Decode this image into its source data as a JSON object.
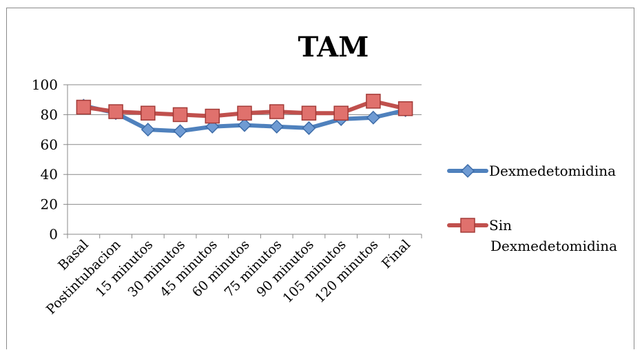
{
  "chart_data": {
    "type": "line",
    "title": "TAM",
    "xlabel": "",
    "ylabel": "",
    "ylim": [
      0,
      100
    ],
    "yticks": [
      0,
      20,
      40,
      60,
      80,
      100
    ],
    "grid": true,
    "legend_position": "right",
    "categories": [
      "Basal",
      "Postintubacion",
      "15 minutos",
      "30 minutos",
      "45 minutos",
      "60 minutos",
      "75 minutos",
      "90 minutos",
      "105 minutos",
      "120 minutos",
      "Final"
    ],
    "series": [
      {
        "name": "Dexmedetomidina",
        "legend_lines": [
          "Dexmedetomidina"
        ],
        "color": "#4f81bd",
        "marker": "diamond",
        "values": [
          86,
          81,
          70,
          69,
          72,
          73,
          72,
          71,
          77,
          78,
          83
        ]
      },
      {
        "name": "Sin Dexmedetomidina",
        "legend_lines": [
          "Sin",
          "Dexmedetomidina"
        ],
        "color": "#c0504d",
        "marker": "square",
        "values": [
          85,
          82,
          81,
          80,
          79,
          81,
          82,
          81,
          81,
          89,
          84
        ]
      }
    ]
  }
}
